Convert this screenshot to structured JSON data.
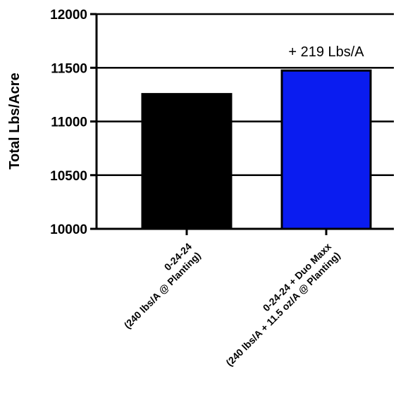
{
  "chart_data": {
    "type": "bar",
    "title": "",
    "xlabel": "",
    "ylabel": "Total Lbs/Acre",
    "ylim": [
      10000,
      12000
    ],
    "yticks": [
      10000,
      10500,
      11000,
      11500,
      12000
    ],
    "grid": "horizontal",
    "categories": [
      [
        "0-24-24",
        "(240 lbs/A @ Planting)"
      ],
      [
        "0-24-24 + Duo Maxx",
        "(240 lbs/A + 11.5 oz/A @ Planting)"
      ]
    ],
    "values": [
      11255,
      11474
    ],
    "colors": [
      "#000000",
      "#0a1cf0"
    ],
    "annotation": {
      "text": "+ 219 Lbs/A",
      "category_index": 1
    }
  }
}
